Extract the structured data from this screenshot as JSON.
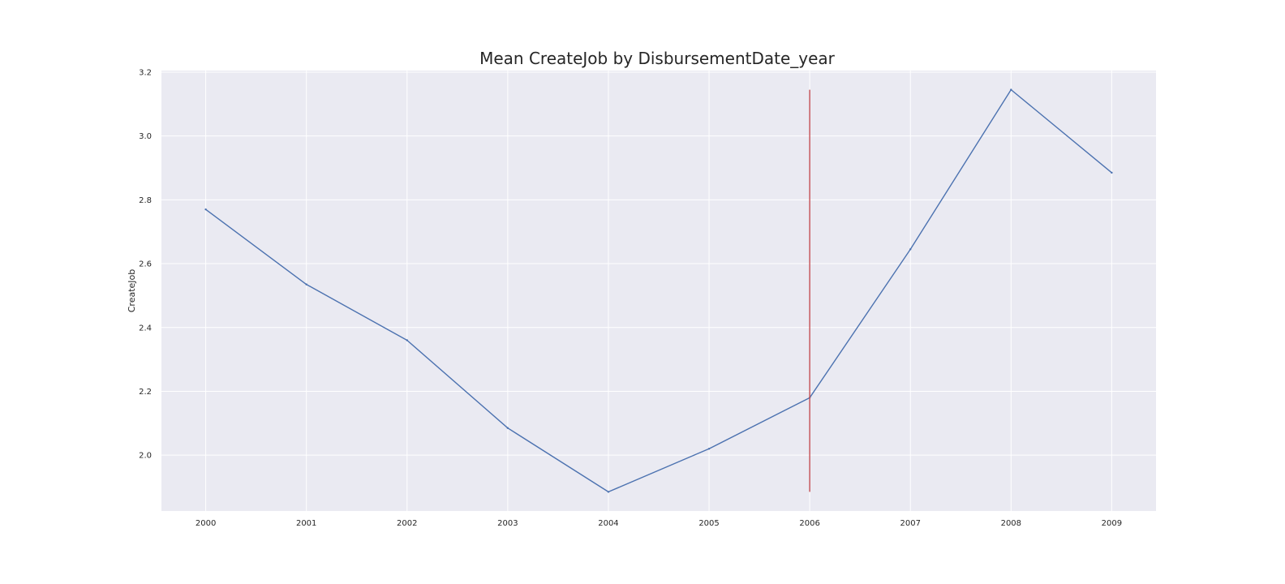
{
  "chart_data": {
    "type": "line",
    "title": "Mean CreateJob by DisbursementDate_year",
    "xlabel": "",
    "ylabel": "CreateJob",
    "x": [
      2000,
      2001,
      2002,
      2003,
      2004,
      2005,
      2006,
      2007,
      2008,
      2009
    ],
    "x_tick_labels": [
      "2000",
      "2001",
      "2002",
      "2003",
      "2004",
      "2005",
      "2006",
      "2007",
      "2008",
      "2009"
    ],
    "series": [
      {
        "values": [
          2.77,
          2.535,
          2.36,
          2.085,
          1.885,
          2.02,
          2.18,
          2.645,
          3.145,
          2.885
        ]
      }
    ],
    "y_ticks": [
      2.0,
      2.2,
      2.4,
      2.6,
      2.8,
      3.0,
      3.2
    ],
    "y_tick_labels": [
      "2.0",
      "2.2",
      "2.4",
      "2.6",
      "2.8",
      "3.0",
      "3.2"
    ],
    "ylim": [
      1.825,
      3.205
    ],
    "xlim": [
      1999.56,
      2009.44
    ],
    "vertical_marker": {
      "x": 2006,
      "y_from": 1.885,
      "y_to": 3.145
    },
    "grid": true,
    "colors": {
      "line": "#4c72b0",
      "marker": "#c44e52",
      "plot_background": "#eaeaf2",
      "grid": "#ffffff"
    }
  }
}
